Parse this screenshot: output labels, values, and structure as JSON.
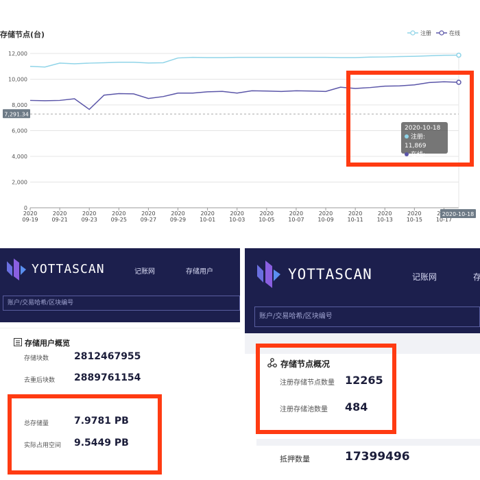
{
  "chart_data": {
    "type": "line",
    "title": "存储节点(台)",
    "legend_position": "top-right",
    "x": [
      "2020-09-19",
      "2020-09-20",
      "2020-09-21",
      "2020-09-22",
      "2020-09-23",
      "2020-09-24",
      "2020-09-25",
      "2020-09-26",
      "2020-09-27",
      "2020-09-28",
      "2020-09-29",
      "2020-09-30",
      "2020-10-01",
      "2020-10-02",
      "2020-10-03",
      "2020-10-04",
      "2020-10-05",
      "2020-10-06",
      "2020-10-07",
      "2020-10-08",
      "2020-10-09",
      "2020-10-10",
      "2020-10-11",
      "2020-10-12",
      "2020-10-13",
      "2020-10-14",
      "2020-10-15",
      "2020-10-16",
      "2020-10-17",
      "2020-10-18"
    ],
    "x_tick_labels": [
      [
        "2020",
        "09-19"
      ],
      [
        "2020",
        "09-21"
      ],
      [
        "2020",
        "09-23"
      ],
      [
        "2020",
        "09-25"
      ],
      [
        "2020",
        "09-27"
      ],
      [
        "2020",
        "09-29"
      ],
      [
        "2020",
        "10-01"
      ],
      [
        "2020",
        "10-03"
      ],
      [
        "2020",
        "10-05"
      ],
      [
        "2020",
        "10-07"
      ],
      [
        "2020",
        "10-09"
      ],
      [
        "2020",
        "10-11"
      ],
      [
        "2020",
        "10-13"
      ],
      [
        "2020",
        "10-15"
      ],
      [
        "2020",
        "10-17"
      ]
    ],
    "y_ticks": [
      "0",
      "2,000",
      "4,000",
      "6,000",
      "8,000",
      "10,000",
      "12,000"
    ],
    "ylim": [
      0,
      12000
    ],
    "grid": true,
    "series": [
      {
        "name": "注册",
        "color": "#8fd4e8",
        "values": [
          11000,
          10950,
          11250,
          11200,
          11250,
          11280,
          11320,
          11320,
          11260,
          11280,
          11650,
          11700,
          11680,
          11680,
          11700,
          11700,
          11700,
          11700,
          11700,
          11700,
          11700,
          11680,
          11680,
          11720,
          11730,
          11760,
          11780,
          11820,
          11860,
          11869
        ]
      },
      {
        "name": "在线",
        "color": "#5a55a8",
        "values": [
          8350,
          8330,
          8350,
          8480,
          7650,
          8760,
          8880,
          8860,
          8500,
          8650,
          8920,
          8920,
          9020,
          9050,
          8920,
          9100,
          9080,
          9050,
          9100,
          9080,
          9050,
          9380,
          9280,
          9350,
          9460,
          9480,
          9560,
          9740,
          9800,
          9759
        ]
      }
    ],
    "reference_line": {
      "value": 7291.34,
      "label": "7,291.34"
    },
    "cursor_label": "2020-10-18",
    "tooltip": {
      "date": "2020-10-18",
      "rows": [
        {
          "name": "注册",
          "value": "11,869"
        },
        {
          "name": "在线",
          "value": "9,759"
        }
      ]
    }
  },
  "left_panel": {
    "logo": "YOTTASCAN",
    "nav": [
      "记账网",
      "存储用户"
    ],
    "search_placeholder": "账户/交易哈希/区块编号",
    "card_title": "存储用户概览",
    "rows": [
      {
        "label": "存储块数",
        "value": "2812467955"
      },
      {
        "label": "去重后块数",
        "value": "2889761154"
      },
      {
        "label": "总存储量",
        "value": "7.9781 PB"
      },
      {
        "label": "实际占用空间",
        "value": "9.5449 PB"
      }
    ]
  },
  "right_panel": {
    "logo": "YOTTASCAN",
    "nav": [
      "记账网",
      "存"
    ],
    "search_placeholder": "账户/交易哈希/区块编号",
    "card_title": "存储节点概况",
    "rows": [
      {
        "label": "注册存储节点数量",
        "value": "12265"
      },
      {
        "label": "注册存储池数量",
        "value": "484"
      },
      {
        "label": "抵押数量",
        "value": "17399496"
      }
    ]
  },
  "colors": {
    "header_bg": "#1c1f4d",
    "highlight": "#ff3b12"
  }
}
